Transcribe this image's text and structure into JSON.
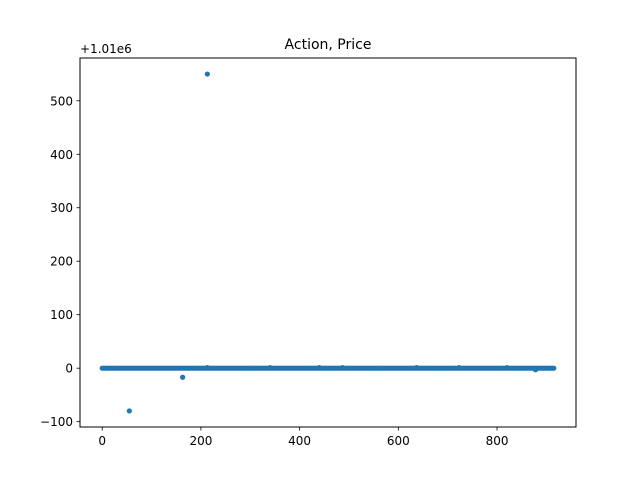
{
  "chart_data": {
    "type": "scatter",
    "title": "Action, Price",
    "xlabel": "",
    "ylabel": "",
    "offset_label": "+1.01e6",
    "xlim": [
      -45,
      960
    ],
    "ylim": [
      -110,
      580
    ],
    "xticks": [
      0,
      200,
      400,
      600,
      800
    ],
    "yticks": [
      -100,
      0,
      100,
      200,
      300,
      400,
      500
    ],
    "grid": false,
    "series": [
      {
        "color": "#1f77b4",
        "baseline": {
          "x_start": 0,
          "x_end": 915,
          "step": 3,
          "y": 0
        },
        "outliers": [
          {
            "x": 55,
            "y": -80
          },
          {
            "x": 163,
            "y": -17
          },
          {
            "x": 213,
            "y": 550
          },
          {
            "x": 213,
            "y": 1
          },
          {
            "x": 340,
            "y": 1
          },
          {
            "x": 440,
            "y": 1
          },
          {
            "x": 487,
            "y": 1
          },
          {
            "x": 637,
            "y": 1
          },
          {
            "x": 723,
            "y": 1
          },
          {
            "x": 820,
            "y": 1
          },
          {
            "x": 878,
            "y": -3
          }
        ]
      }
    ]
  }
}
